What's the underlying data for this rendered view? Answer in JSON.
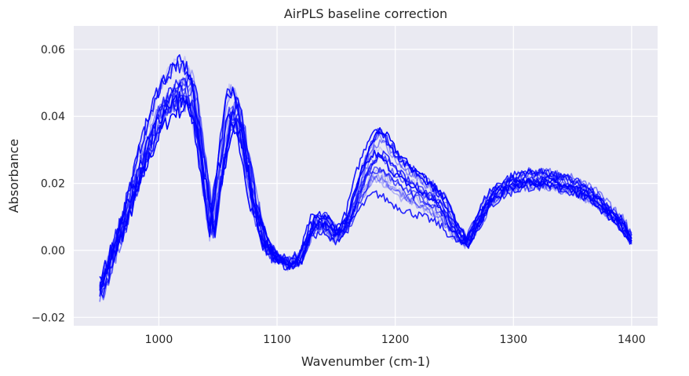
{
  "chart_data": {
    "type": "line",
    "title": "AirPLS baseline correction",
    "xlabel": "Wavenumber (cm-1)",
    "ylabel": "Absorbance",
    "xlim": [
      928,
      1422
    ],
    "ylim": [
      -0.0225,
      0.067
    ],
    "xticks": [
      1000,
      1100,
      1200,
      1300,
      1400
    ],
    "xtick_labels": [
      "1000",
      "1100",
      "1200",
      "1300",
      "1400"
    ],
    "yticks": [
      -0.02,
      0.0,
      0.02,
      0.04,
      0.06
    ],
    "ytick_labels": [
      "−0.02",
      "0.00",
      "0.02",
      "0.04",
      "0.06"
    ],
    "grid": true,
    "background": "#eaeaf2",
    "grid_color": "#ffffff",
    "line_color": "#0000ff",
    "series_alphas": [
      1.0,
      0.95,
      0.9,
      0.85,
      0.8,
      0.75,
      0.7,
      0.65,
      0.6,
      0.55,
      0.5,
      0.45,
      0.4,
      0.35,
      0.3,
      0.25,
      0.2,
      0.15
    ],
    "x": [
      950,
      960,
      970,
      980,
      990,
      1000,
      1010,
      1020,
      1025,
      1030,
      1040,
      1045,
      1050,
      1060,
      1065,
      1070,
      1080,
      1090,
      1100,
      1110,
      1120,
      1130,
      1140,
      1150,
      1160,
      1170,
      1180,
      1185,
      1190,
      1200,
      1210,
      1220,
      1230,
      1240,
      1250,
      1260,
      1270,
      1280,
      1290,
      1300,
      1310,
      1320,
      1330,
      1340,
      1350,
      1360,
      1370,
      1380,
      1390,
      1400
    ],
    "mean_spectrum": [
      -0.013,
      -0.002,
      0.008,
      0.02,
      0.032,
      0.042,
      0.048,
      0.05,
      0.049,
      0.045,
      0.018,
      0.005,
      0.02,
      0.042,
      0.043,
      0.036,
      0.015,
      0.002,
      -0.002,
      -0.004,
      -0.002,
      0.007,
      0.008,
      0.004,
      0.008,
      0.018,
      0.025,
      0.027,
      0.026,
      0.022,
      0.019,
      0.017,
      0.015,
      0.012,
      0.006,
      0.002,
      0.009,
      0.016,
      0.019,
      0.021,
      0.022,
      0.022,
      0.022,
      0.021,
      0.02,
      0.018,
      0.016,
      0.012,
      0.009,
      0.003
    ]
  }
}
